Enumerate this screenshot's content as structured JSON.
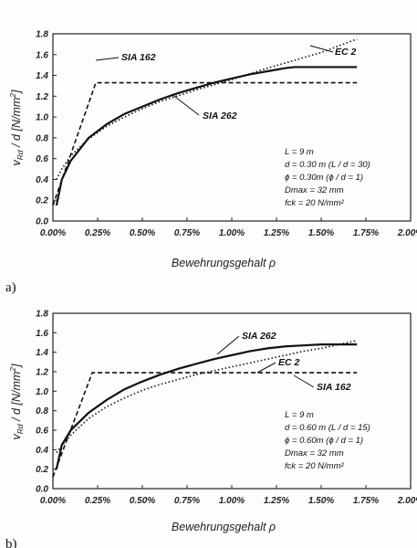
{
  "chart_data": [
    {
      "type": "line",
      "panel_label": "a)",
      "xlabel": "Bewehrungsgehalt ρ",
      "ylabel": "vRd / d [N/mm²]",
      "ylabel_parts": {
        "v": "v",
        "sub": "Rd",
        "rest": " / d  [N/mm",
        "sup": "2",
        "end": "]"
      },
      "xlim": [
        0,
        2.0
      ],
      "ylim": [
        0,
        1.8
      ],
      "x_ticks": [
        "0.00%",
        "0.25%",
        "0.50%",
        "0.75%",
        "1.00%",
        "1.25%",
        "1.50%",
        "1.75%",
        "2.00%"
      ],
      "y_ticks": [
        "0.0",
        "0.2",
        "0.4",
        "0.6",
        "0.8",
        "1.0",
        "1.2",
        "1.4",
        "1.6",
        "1.8"
      ],
      "series": [
        {
          "name": "SIA 162",
          "style": "dashed",
          "x": [
            0.0,
            0.24,
            1.7
          ],
          "y": [
            0.15,
            1.33,
            1.33
          ]
        },
        {
          "name": "SIA 262",
          "style": "solid",
          "x": [
            0.02,
            0.05,
            0.1,
            0.2,
            0.3,
            0.4,
            0.5,
            0.6,
            0.7,
            0.8,
            0.9,
            1.0,
            1.1,
            1.2,
            1.3,
            1.35,
            1.7
          ],
          "y": [
            0.15,
            0.4,
            0.58,
            0.8,
            0.93,
            1.03,
            1.1,
            1.17,
            1.23,
            1.28,
            1.33,
            1.37,
            1.41,
            1.44,
            1.47,
            1.48,
            1.48
          ]
        },
        {
          "name": "EC 2",
          "style": "dotted",
          "x": [
            0.02,
            0.05,
            0.1,
            0.2,
            0.3,
            0.4,
            0.5,
            0.6,
            0.8,
            1.0,
            1.2,
            1.4,
            1.5,
            1.7
          ],
          "y": [
            0.4,
            0.5,
            0.63,
            0.79,
            0.91,
            1.0,
            1.08,
            1.15,
            1.26,
            1.36,
            1.47,
            1.57,
            1.62,
            1.75
          ]
        }
      ],
      "annotations": {
        "line1": "L = 9 m",
        "line2": "d = 0.30 m   (L / d = 30)",
        "line3": "ϕ = 0.30m   (ϕ / d = 1)",
        "line4": "Dmax = 32 mm",
        "line5": "fck = 20 N/mm²"
      },
      "grid": false
    },
    {
      "type": "line",
      "panel_label": "b)",
      "xlabel": "Bewehrungsgehalt ρ",
      "ylabel": "vRd / d [N/mm²]",
      "xlim": [
        0,
        2.0
      ],
      "ylim": [
        0,
        1.8
      ],
      "x_ticks": [
        "0.00%",
        "0.25%",
        "0.50%",
        "0.75%",
        "1.00%",
        "1.25%",
        "1.50%",
        "1.75%",
        "2.00%"
      ],
      "y_ticks": [
        "0.0",
        "0.2",
        "0.4",
        "0.6",
        "0.8",
        "1.0",
        "1.2",
        "1.4",
        "1.6",
        "1.8"
      ],
      "series": [
        {
          "name": "SIA 162",
          "style": "dashed",
          "x": [
            0.0,
            0.22,
            1.7
          ],
          "y": [
            0.12,
            1.19,
            1.19
          ]
        },
        {
          "name": "SIA 262",
          "style": "solid",
          "x": [
            0.02,
            0.05,
            0.1,
            0.2,
            0.3,
            0.4,
            0.5,
            0.6,
            0.7,
            0.8,
            0.9,
            1.0,
            1.1,
            1.2,
            1.3,
            1.4,
            1.5,
            1.7
          ],
          "y": [
            0.2,
            0.45,
            0.6,
            0.78,
            0.91,
            1.02,
            1.1,
            1.17,
            1.23,
            1.28,
            1.33,
            1.37,
            1.41,
            1.44,
            1.46,
            1.47,
            1.48,
            1.48
          ]
        },
        {
          "name": "EC 2",
          "style": "dotted",
          "x": [
            0.02,
            0.05,
            0.1,
            0.2,
            0.3,
            0.4,
            0.5,
            0.6,
            0.8,
            1.0,
            1.2,
            1.4,
            1.5,
            1.7
          ],
          "y": [
            0.37,
            0.44,
            0.55,
            0.72,
            0.84,
            0.93,
            1.01,
            1.07,
            1.17,
            1.25,
            1.33,
            1.41,
            1.44,
            1.52
          ]
        }
      ],
      "annotations": {
        "line1": "L = 9 m",
        "line2": "d = 0.60 m   (L / d = 15)",
        "line3": "ϕ = 0.60m   (ϕ / d = 1)",
        "line4": "Dmax = 32 mm",
        "line5": "fck = 20 N/mm²"
      },
      "grid": false
    }
  ]
}
